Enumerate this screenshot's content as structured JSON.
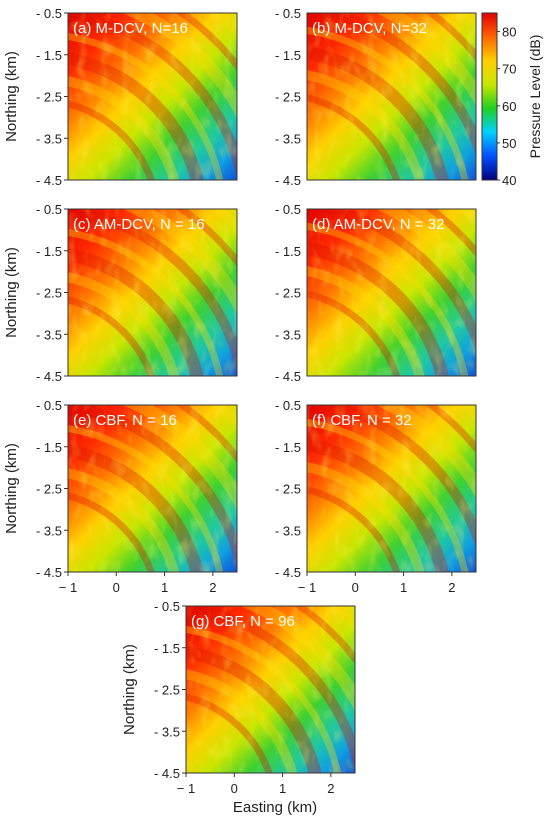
{
  "chart_data": {
    "type": "heatmap",
    "x_range": [
      -1,
      2.5
    ],
    "y_range": [
      -4.5,
      -0.5
    ],
    "x_ticks": [
      -1,
      0,
      1,
      2
    ],
    "y_ticks": [
      -0.5,
      -1.5,
      -2.5,
      -3.5,
      -4.5
    ],
    "x_tick_labels": [
      "− 1",
      "0",
      "1",
      "2"
    ],
    "y_tick_labels": [
      "- 0.5",
      "- 1.5",
      "- 2.5",
      "- 3.5",
      "- 4.5"
    ],
    "xlabel": "Easting (km)",
    "ylabel": "Northing (km)",
    "colorbar": {
      "label": "Pressure Level (dB)",
      "range": [
        40,
        85
      ],
      "ticks": [
        40,
        50,
        60,
        70,
        80
      ],
      "tick_labels": [
        "40",
        "50",
        "60",
        "70",
        "80"
      ],
      "colors": [
        "#000080",
        "#0050ff",
        "#00d0ff",
        "#20d020",
        "#c8e600",
        "#ffd000",
        "#ff6400",
        "#e00000"
      ]
    },
    "panels": [
      {
        "label": "(a) M-DCV, N=16",
        "method": "M-DCV",
        "N": 16
      },
      {
        "label": "(b) M-DCV, N=32",
        "method": "M-DCV",
        "N": 32
      },
      {
        "label": "(c) AM-DCV, N = 16",
        "method": "AM-DCV",
        "N": 16
      },
      {
        "label": "(d) AM-DCV, N = 32",
        "method": "AM-DCV",
        "N": 32
      },
      {
        "label": "(e) CBF, N = 16",
        "method": "CBF",
        "N": 16
      },
      {
        "label": "(f) CBF, N = 32",
        "method": "CBF",
        "N": 32
      },
      {
        "label": "(g) CBF, N = 96",
        "method": "CBF",
        "N": 96
      }
    ]
  }
}
